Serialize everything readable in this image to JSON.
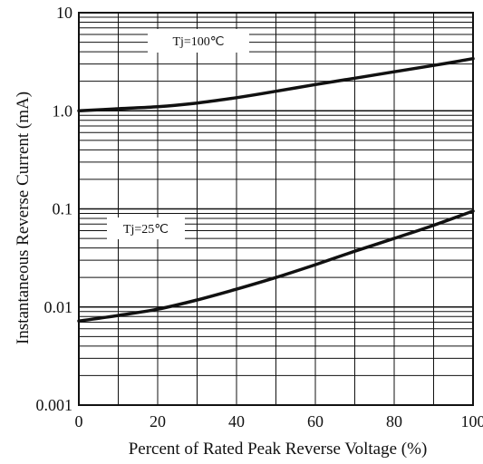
{
  "chart_data": {
    "type": "line",
    "xlabel": "Percent of Rated Peak Reverse Voltage (%)",
    "ylabel": "Instantaneous Reverse Current (mA)",
    "xscale": "linear",
    "yscale": "log",
    "xlim": [
      0,
      100
    ],
    "ylim": [
      0.001,
      10
    ],
    "grid": true,
    "x_ticks": [
      0,
      20,
      40,
      60,
      80,
      100
    ],
    "x_tick_labels": [
      "0",
      "20",
      "40",
      "60",
      "80",
      "100"
    ],
    "y_ticks": [
      0.001,
      0.01,
      0.1,
      1.0,
      10
    ],
    "y_tick_labels": [
      "0.001",
      "0.01",
      "0.1",
      "1.0",
      "10"
    ],
    "series": [
      {
        "name": "Tj=100℃",
        "x": [
          0,
          10,
          20,
          30,
          40,
          50,
          60,
          70,
          80,
          90,
          100
        ],
        "y": [
          1.0,
          1.05,
          1.1,
          1.2,
          1.36,
          1.58,
          1.85,
          2.15,
          2.5,
          2.9,
          3.4
        ]
      },
      {
        "name": "Tj=25℃",
        "x": [
          0,
          10,
          20,
          30,
          40,
          50,
          60,
          70,
          80,
          90,
          100
        ],
        "y": [
          0.0072,
          0.0082,
          0.0095,
          0.0118,
          0.0152,
          0.02,
          0.027,
          0.037,
          0.05,
          0.068,
          0.095
        ]
      }
    ]
  }
}
